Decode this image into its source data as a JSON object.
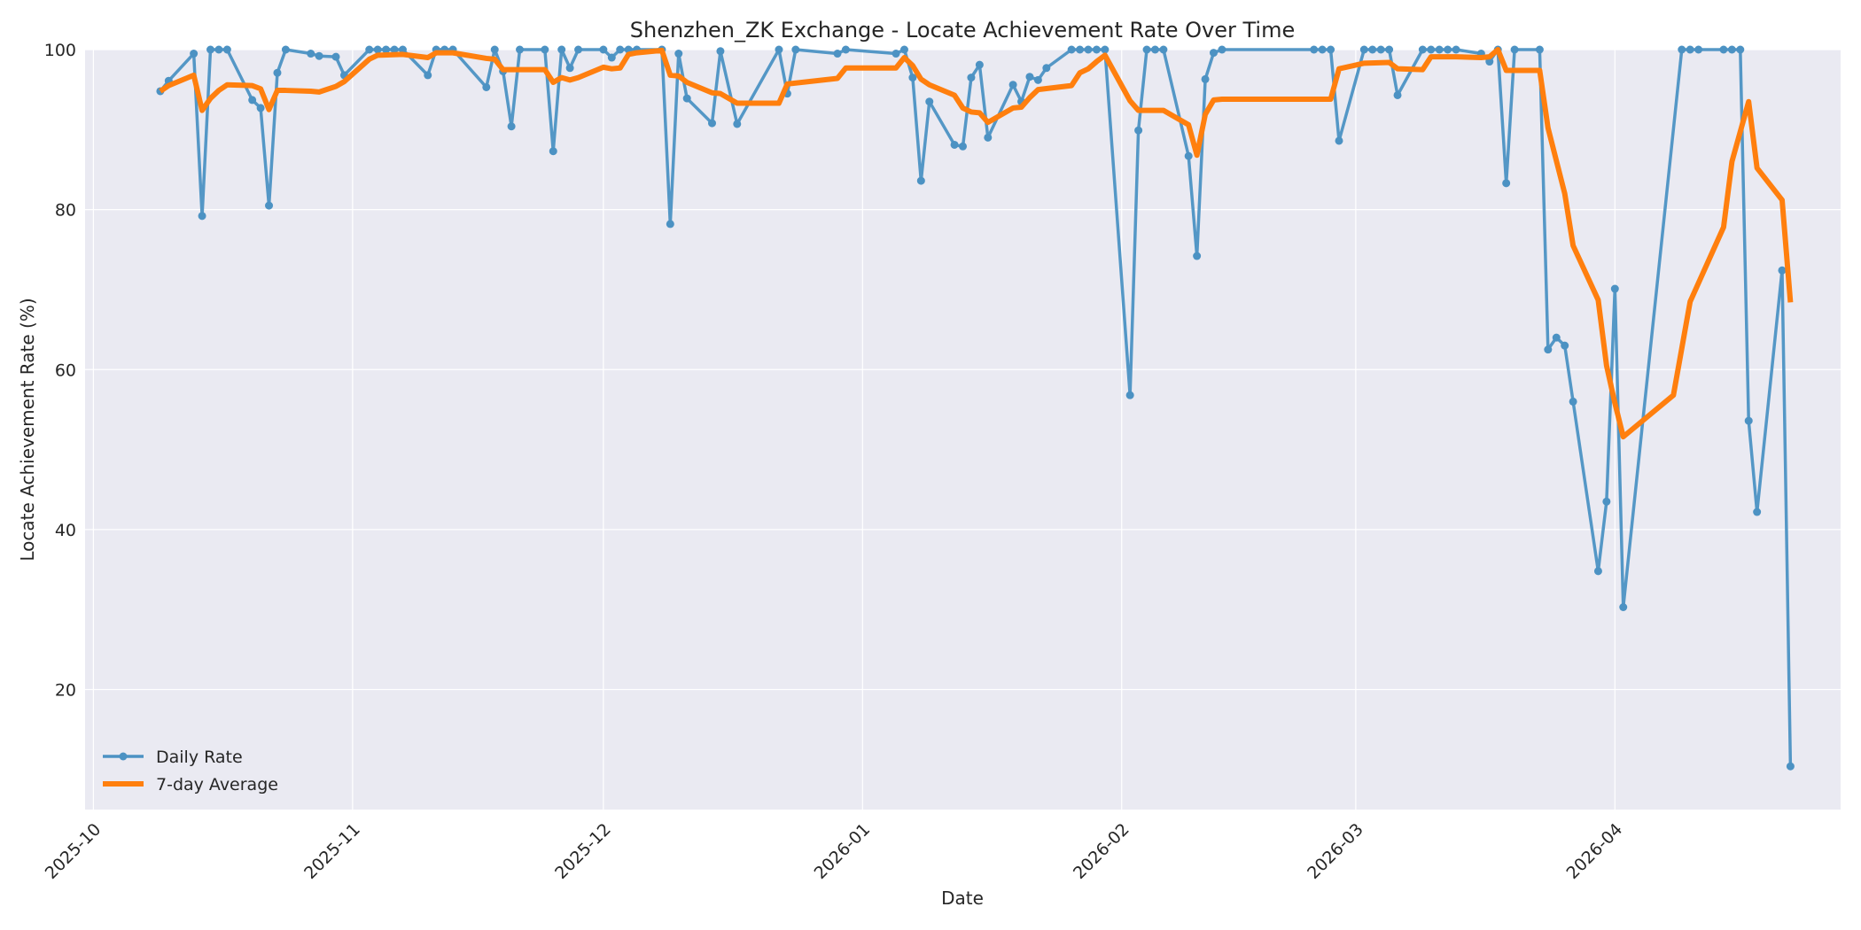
{
  "chart_data": {
    "type": "line",
    "title": "Shenzhen_ZK Exchange - Locate Achievement Rate Over Time",
    "xlabel": "Date",
    "ylabel": "Locate Achievement Rate (%)",
    "xlim": [
      "2025-09-30",
      "2026-04-28"
    ],
    "ylim": [
      5,
      100
    ],
    "yticks": [
      20,
      40,
      60,
      80,
      100
    ],
    "xticks": [
      "2025-10-01",
      "2025-11-01",
      "2025-12-01",
      "2026-01-01",
      "2026-02-01",
      "2026-03-01",
      "2026-04-01"
    ],
    "xtick_labels": [
      "2025-10",
      "2025-11",
      "2025-12",
      "2026-01",
      "2026-02",
      "2026-03",
      "2026-04"
    ],
    "grid": true,
    "legend_position": "lower-left",
    "colors": {
      "daily": "#4c92c3",
      "average": "#ff7f0e",
      "background": "#eaeaf2"
    },
    "series": [
      {
        "name": "Daily Rate",
        "style": "line-markers",
        "points": [
          [
            "2025-10-09",
            94.8
          ],
          [
            "2025-10-10",
            96.1
          ],
          [
            "2025-10-13",
            99.5
          ],
          [
            "2025-10-14",
            79.2
          ],
          [
            "2025-10-15",
            100
          ],
          [
            "2025-10-16",
            100
          ],
          [
            "2025-10-17",
            100
          ],
          [
            "2025-10-20",
            93.7
          ],
          [
            "2025-10-21",
            92.7
          ],
          [
            "2025-10-22",
            80.5
          ],
          [
            "2025-10-23",
            97.1
          ],
          [
            "2025-10-24",
            100
          ],
          [
            "2025-10-27",
            99.5
          ],
          [
            "2025-10-28",
            99.2
          ],
          [
            "2025-10-30",
            99.1
          ],
          [
            "2025-10-31",
            96.8
          ],
          [
            "2025-11-03",
            100
          ],
          [
            "2025-11-04",
            100
          ],
          [
            "2025-11-05",
            100
          ],
          [
            "2025-11-06",
            100
          ],
          [
            "2025-11-07",
            100
          ],
          [
            "2025-11-10",
            96.8
          ],
          [
            "2025-11-11",
            100
          ],
          [
            "2025-11-12",
            100
          ],
          [
            "2025-11-13",
            100
          ],
          [
            "2025-11-17",
            95.3
          ],
          [
            "2025-11-18",
            100
          ],
          [
            "2025-11-19",
            97.3
          ],
          [
            "2025-11-20",
            90.4
          ],
          [
            "2025-11-21",
            100
          ],
          [
            "2025-11-24",
            100
          ],
          [
            "2025-11-25",
            87.3
          ],
          [
            "2025-11-26",
            100
          ],
          [
            "2025-11-27",
            97.7
          ],
          [
            "2025-11-28",
            100
          ],
          [
            "2025-12-01",
            100
          ],
          [
            "2025-12-02",
            99.0
          ],
          [
            "2025-12-03",
            100
          ],
          [
            "2025-12-04",
            100
          ],
          [
            "2025-12-05",
            100
          ],
          [
            "2025-12-08",
            100
          ],
          [
            "2025-12-09",
            78.2
          ],
          [
            "2025-12-10",
            99.5
          ],
          [
            "2025-12-11",
            93.9
          ],
          [
            "2025-12-14",
            90.8
          ],
          [
            "2025-12-15",
            99.8
          ],
          [
            "2025-12-17",
            90.7
          ],
          [
            "2025-12-22",
            100
          ],
          [
            "2025-12-23",
            94.5
          ],
          [
            "2025-12-24",
            100
          ],
          [
            "2025-12-29",
            99.5
          ],
          [
            "2025-12-30",
            100
          ],
          [
            "2026-01-05",
            99.5
          ],
          [
            "2026-01-06",
            100
          ],
          [
            "2026-01-07",
            96.5
          ],
          [
            "2026-01-08",
            83.6
          ],
          [
            "2026-01-09",
            93.5
          ],
          [
            "2026-01-12",
            88.1
          ],
          [
            "2026-01-13",
            87.9
          ],
          [
            "2026-01-14",
            96.5
          ],
          [
            "2026-01-15",
            98.1
          ],
          [
            "2026-01-16",
            89.0
          ],
          [
            "2026-01-19",
            95.6
          ],
          [
            "2026-01-20",
            93.5
          ],
          [
            "2026-01-21",
            96.6
          ],
          [
            "2026-01-22",
            96.2
          ],
          [
            "2026-01-23",
            97.7
          ],
          [
            "2026-01-26",
            100
          ],
          [
            "2026-01-27",
            100
          ],
          [
            "2026-01-28",
            100
          ],
          [
            "2026-01-29",
            100
          ],
          [
            "2026-01-30",
            100
          ],
          [
            "2026-02-02",
            56.8
          ],
          [
            "2026-02-03",
            89.9
          ],
          [
            "2026-02-04",
            100
          ],
          [
            "2026-02-05",
            100
          ],
          [
            "2026-02-06",
            100
          ],
          [
            "2026-02-09",
            86.7
          ],
          [
            "2026-02-10",
            74.2
          ],
          [
            "2026-02-11",
            96.3
          ],
          [
            "2026-02-12",
            99.6
          ],
          [
            "2026-02-13",
            100
          ],
          [
            "2026-02-24",
            100
          ],
          [
            "2026-02-25",
            100
          ],
          [
            "2026-02-26",
            100
          ],
          [
            "2026-02-27",
            88.6
          ],
          [
            "2026-03-02",
            100
          ],
          [
            "2026-03-03",
            100
          ],
          [
            "2026-03-04",
            100
          ],
          [
            "2026-03-05",
            100
          ],
          [
            "2026-03-06",
            94.3
          ],
          [
            "2026-03-09",
            100
          ],
          [
            "2026-03-10",
            100
          ],
          [
            "2026-03-11",
            100
          ],
          [
            "2026-03-12",
            100
          ],
          [
            "2026-03-13",
            100
          ],
          [
            "2026-03-16",
            99.5
          ],
          [
            "2026-03-17",
            98.5
          ],
          [
            "2026-03-18",
            100
          ],
          [
            "2026-03-19",
            83.3
          ],
          [
            "2026-03-20",
            100
          ],
          [
            "2026-03-23",
            100
          ],
          [
            "2026-03-24",
            62.5
          ],
          [
            "2026-03-25",
            64.0
          ],
          [
            "2026-03-26",
            63.0
          ],
          [
            "2026-03-27",
            56.0
          ],
          [
            "2026-03-30",
            34.8
          ],
          [
            "2026-03-31",
            43.5
          ],
          [
            "2026-04-01",
            70.1
          ],
          [
            "2026-04-02",
            30.3
          ],
          [
            "2026-04-09",
            100
          ],
          [
            "2026-04-10",
            100
          ],
          [
            "2026-04-11",
            100
          ],
          [
            "2026-04-14",
            100
          ],
          [
            "2026-04-15",
            100
          ],
          [
            "2026-04-16",
            100
          ],
          [
            "2026-04-17",
            53.6
          ],
          [
            "2026-04-18",
            42.2
          ],
          [
            "2026-04-21",
            72.4
          ],
          [
            "2026-04-22",
            10.4
          ]
        ]
      },
      {
        "name": "7-day Average",
        "style": "line",
        "points": [
          [
            "2025-10-09",
            94.8
          ],
          [
            "2025-10-10",
            95.5
          ],
          [
            "2025-10-13",
            96.8
          ],
          [
            "2025-10-14",
            92.4
          ],
          [
            "2025-10-15",
            93.9
          ],
          [
            "2025-10-16",
            94.9
          ],
          [
            "2025-10-17",
            95.6
          ],
          [
            "2025-10-20",
            95.5
          ],
          [
            "2025-10-21",
            95.1
          ],
          [
            "2025-10-22",
            92.5
          ],
          [
            "2025-10-23",
            94.9
          ],
          [
            "2025-10-24",
            94.9
          ],
          [
            "2025-10-27",
            94.8
          ],
          [
            "2025-10-28",
            94.7
          ],
          [
            "2025-10-30",
            95.4
          ],
          [
            "2025-10-31",
            96.0
          ],
          [
            "2025-11-03",
            98.8
          ],
          [
            "2025-11-04",
            99.3
          ],
          [
            "2025-11-07",
            99.4
          ],
          [
            "2025-11-10",
            99.0
          ],
          [
            "2025-11-11",
            99.6
          ],
          [
            "2025-11-13",
            99.6
          ],
          [
            "2025-11-17",
            98.9
          ],
          [
            "2025-11-18",
            98.8
          ],
          [
            "2025-11-19",
            97.5
          ],
          [
            "2025-11-20",
            97.5
          ],
          [
            "2025-11-24",
            97.5
          ],
          [
            "2025-11-25",
            95.9
          ],
          [
            "2025-11-26",
            96.5
          ],
          [
            "2025-11-27",
            96.2
          ],
          [
            "2025-11-28",
            96.5
          ],
          [
            "2025-12-01",
            97.8
          ],
          [
            "2025-12-02",
            97.6
          ],
          [
            "2025-12-03",
            97.7
          ],
          [
            "2025-12-04",
            99.4
          ],
          [
            "2025-12-05",
            99.6
          ],
          [
            "2025-12-08",
            99.9
          ],
          [
            "2025-12-09",
            96.8
          ],
          [
            "2025-12-10",
            96.7
          ],
          [
            "2025-12-11",
            95.9
          ],
          [
            "2025-12-14",
            94.6
          ],
          [
            "2025-12-15",
            94.5
          ],
          [
            "2025-12-17",
            93.3
          ],
          [
            "2025-12-22",
            93.3
          ],
          [
            "2025-12-23",
            95.7
          ],
          [
            "2025-12-29",
            96.4
          ],
          [
            "2025-12-30",
            97.7
          ],
          [
            "2026-01-05",
            97.7
          ],
          [
            "2026-01-06",
            99.0
          ],
          [
            "2026-01-07",
            98.0
          ],
          [
            "2026-01-08",
            96.3
          ],
          [
            "2026-01-09",
            95.6
          ],
          [
            "2026-01-12",
            94.3
          ],
          [
            "2026-01-13",
            92.7
          ],
          [
            "2026-01-14",
            92.2
          ],
          [
            "2026-01-15",
            92.1
          ],
          [
            "2026-01-16",
            90.9
          ],
          [
            "2026-01-19",
            92.7
          ],
          [
            "2026-01-20",
            92.8
          ],
          [
            "2026-01-21",
            94.0
          ],
          [
            "2026-01-22",
            95.0
          ],
          [
            "2026-01-26",
            95.5
          ],
          [
            "2026-01-27",
            97.1
          ],
          [
            "2026-01-28",
            97.6
          ],
          [
            "2026-01-29",
            98.5
          ],
          [
            "2026-01-30",
            99.3
          ],
          [
            "2026-02-02",
            93.6
          ],
          [
            "2026-02-03",
            92.4
          ],
          [
            "2026-02-06",
            92.4
          ],
          [
            "2026-02-09",
            90.6
          ],
          [
            "2026-02-10",
            86.8
          ],
          [
            "2026-02-11",
            91.9
          ],
          [
            "2026-02-12",
            93.7
          ],
          [
            "2026-02-13",
            93.8
          ],
          [
            "2026-02-26",
            93.8
          ],
          [
            "2026-02-27",
            97.6
          ],
          [
            "2026-03-02",
            98.3
          ],
          [
            "2026-03-05",
            98.4
          ],
          [
            "2026-03-06",
            97.6
          ],
          [
            "2026-03-09",
            97.5
          ],
          [
            "2026-03-10",
            99.1
          ],
          [
            "2026-03-13",
            99.1
          ],
          [
            "2026-03-16",
            99.0
          ],
          [
            "2026-03-17",
            99.1
          ],
          [
            "2026-03-18",
            100
          ],
          [
            "2026-03-19",
            97.4
          ],
          [
            "2026-03-23",
            97.4
          ],
          [
            "2026-03-24",
            90.2
          ],
          [
            "2026-03-26",
            82.0
          ],
          [
            "2026-03-27",
            75.5
          ],
          [
            "2026-03-30",
            68.7
          ],
          [
            "2026-03-31",
            60.5
          ],
          [
            "2026-04-01",
            55.8
          ],
          [
            "2026-04-02",
            51.6
          ],
          [
            "2026-04-08",
            56.8
          ],
          [
            "2026-04-10",
            68.5
          ],
          [
            "2026-04-14",
            77.8
          ],
          [
            "2026-04-15",
            86.0
          ],
          [
            "2026-04-17",
            93.5
          ],
          [
            "2026-04-18",
            85.2
          ],
          [
            "2026-04-21",
            81.2
          ],
          [
            "2026-04-22",
            68.4
          ]
        ]
      }
    ]
  }
}
